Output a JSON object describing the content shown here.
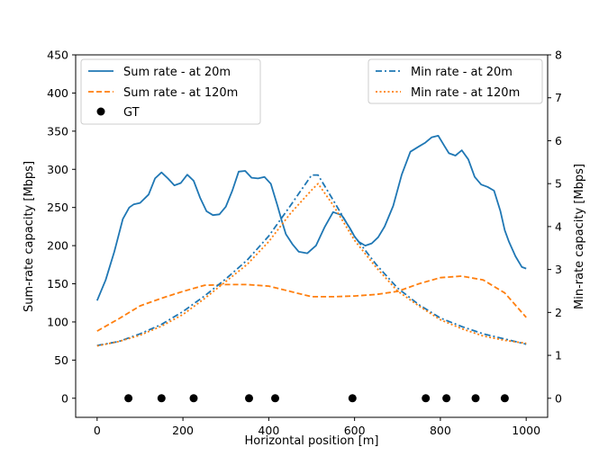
{
  "chart_data": {
    "type": "line",
    "xlabel": "Horizontal position [m]",
    "ylabel_left": "Sum-rate capacity [Mbps]",
    "ylabel_right": "Min-rate capacity [Mbps]",
    "xlim": [
      -50,
      1050
    ],
    "ylim_left": [
      -25,
      450
    ],
    "ylim_right": [
      -0.444,
      8
    ],
    "xticks": [
      0,
      200,
      400,
      600,
      800,
      1000
    ],
    "yticks_left": [
      0,
      50,
      100,
      150,
      200,
      250,
      300,
      350,
      400,
      450
    ],
    "yticks_right": [
      0,
      1,
      2,
      3,
      4,
      5,
      6,
      7,
      8
    ],
    "grid": false,
    "legends": [
      {
        "position": "top-left",
        "entries": [
          "Sum rate - at 20m",
          "Sum rate - at 120m",
          "GT"
        ]
      },
      {
        "position": "top-right",
        "entries": [
          "Min rate - at 20m",
          "Min rate - at 120m"
        ]
      }
    ],
    "series": [
      {
        "name": "Sum rate - at 20m",
        "axis": "left",
        "color": "#1f77b4",
        "style": "solid",
        "x": [
          0,
          20,
          40,
          60,
          75,
          85,
          100,
          120,
          135,
          150,
          165,
          180,
          195,
          210,
          225,
          240,
          255,
          270,
          285,
          300,
          315,
          330,
          345,
          360,
          375,
          390,
          405,
          420,
          430,
          440,
          455,
          470,
          490,
          510,
          530,
          550,
          570,
          590,
          600,
          610,
          625,
          640,
          655,
          670,
          690,
          710,
          730,
          750,
          765,
          780,
          795,
          810,
          820,
          835,
          850,
          865,
          880,
          895,
          910,
          925,
          940,
          950,
          960,
          975,
          990,
          1000
        ],
        "y": [
          128,
          155,
          192,
          235,
          250,
          254,
          256,
          267,
          288,
          296,
          288,
          279,
          282,
          293,
          285,
          263,
          245,
          240,
          241,
          251,
          272,
          297,
          298,
          289,
          288,
          290,
          281,
          253,
          233,
          215,
          202,
          192,
          190,
          200,
          224,
          244,
          240,
          222,
          212,
          205,
          200,
          203,
          211,
          225,
          252,
          293,
          323,
          330,
          335,
          342,
          344,
          330,
          321,
          318,
          325,
          313,
          290,
          280,
          277,
          272,
          245,
          220,
          205,
          186,
          172,
          170
        ]
      },
      {
        "name": "Sum rate - at 120m",
        "axis": "left",
        "color": "#ff7f0e",
        "style": "dashed",
        "x": [
          0,
          50,
          100,
          150,
          200,
          250,
          300,
          350,
          400,
          450,
          500,
          550,
          600,
          650,
          700,
          750,
          800,
          850,
          900,
          950,
          1000
        ],
        "y": [
          88,
          104,
          121,
          131,
          140,
          148,
          149,
          149,
          147,
          140,
          133,
          133,
          134,
          136,
          140,
          150,
          158,
          160,
          155,
          138,
          106
        ]
      },
      {
        "name": "Min rate - at 20m",
        "axis": "right",
        "color": "#1f77b4",
        "style": "dashdot",
        "x": [
          0,
          50,
          100,
          150,
          200,
          250,
          300,
          350,
          400,
          450,
          500,
          515,
          550,
          600,
          650,
          700,
          750,
          800,
          850,
          900,
          950,
          1000
        ],
        "y": [
          1.23,
          1.32,
          1.5,
          1.72,
          2.02,
          2.38,
          2.78,
          3.22,
          3.78,
          4.48,
          5.2,
          5.2,
          4.62,
          3.77,
          3.12,
          2.57,
          2.18,
          1.87,
          1.67,
          1.5,
          1.38,
          1.26
        ]
      },
      {
        "name": "Min rate - at 120m",
        "axis": "right",
        "color": "#ff7f0e",
        "style": "dotted",
        "x": [
          0,
          50,
          100,
          150,
          200,
          250,
          300,
          350,
          400,
          450,
          500,
          515,
          550,
          600,
          650,
          700,
          750,
          800,
          850,
          900,
          950,
          1000
        ],
        "y": [
          1.22,
          1.32,
          1.47,
          1.68,
          1.95,
          2.32,
          2.72,
          3.12,
          3.65,
          4.3,
          4.85,
          5.0,
          4.5,
          3.68,
          3.05,
          2.5,
          2.15,
          1.83,
          1.62,
          1.45,
          1.35,
          1.28
        ]
      },
      {
        "name": "GT",
        "axis": "left",
        "color": "#000000",
        "style": "markers",
        "x": [
          73,
          150,
          225,
          354,
          415,
          595,
          766,
          814,
          882,
          950
        ],
        "y": [
          0,
          0,
          0,
          0,
          0,
          0,
          0,
          0,
          0,
          0
        ]
      }
    ]
  }
}
